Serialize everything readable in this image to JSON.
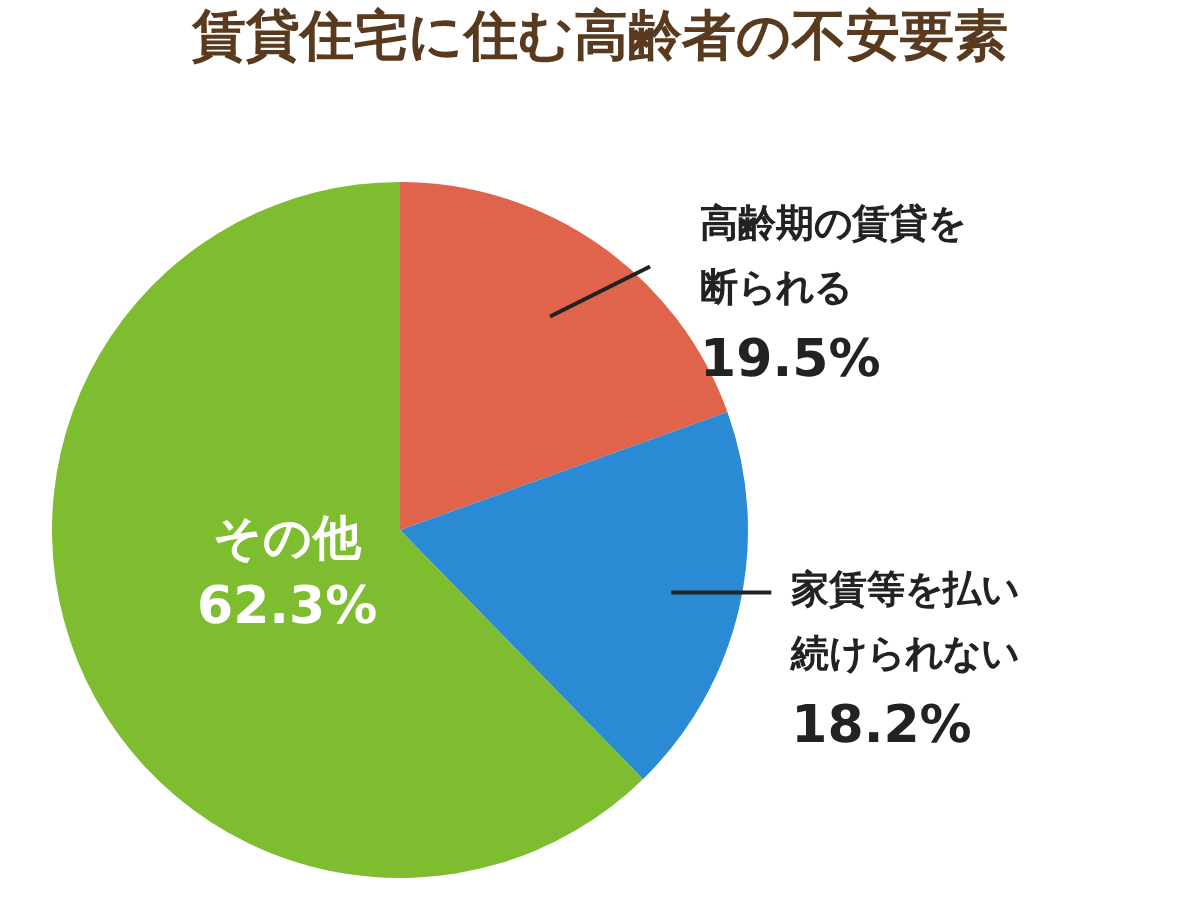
{
  "chart_data": {
    "type": "pie",
    "title": "賃貸住宅に住む高齢者の不安要素",
    "categories": [
      "高齢期の賃貸を断られる",
      "家賃等を払い続けられない",
      "その他"
    ],
    "value_labels": [
      "19.5%",
      "18.2%",
      "62.3%"
    ],
    "values": [
      19.5,
      18.2,
      62.3
    ],
    "colors": [
      "#e0634b",
      "#2a8ad4",
      "#7dbd2f"
    ],
    "data_labels": true,
    "legend": false
  }
}
